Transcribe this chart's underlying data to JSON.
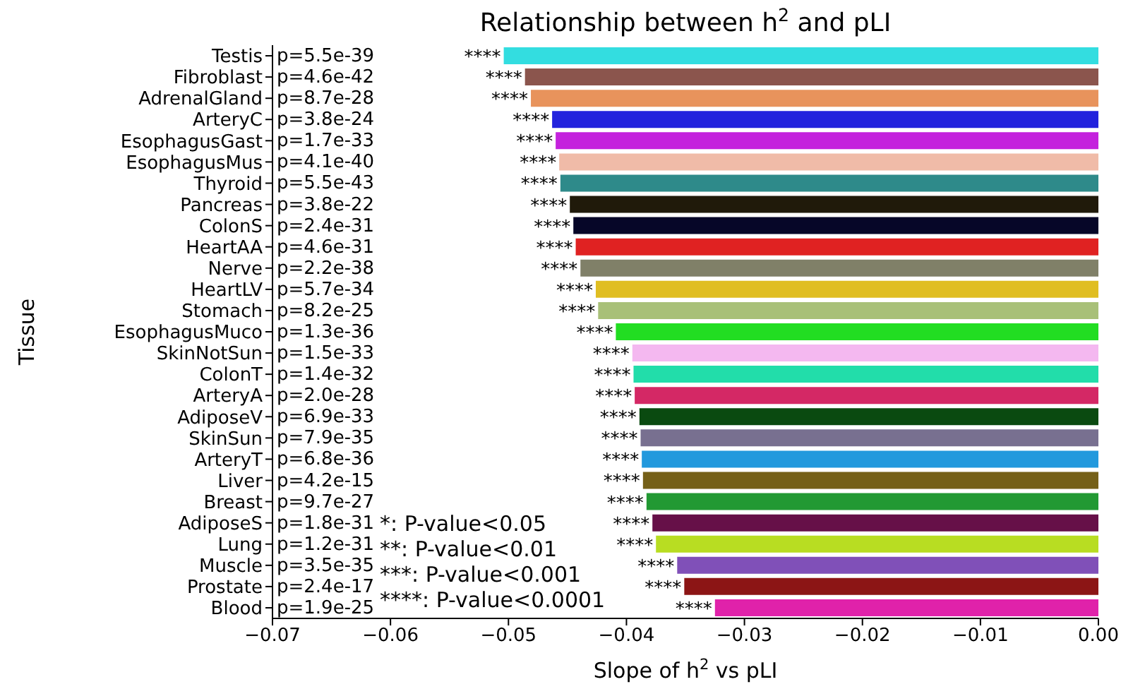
{
  "chart_data": {
    "type": "bar",
    "orientation": "horizontal",
    "title": "Relationship between h$^{2}$ and pLI",
    "xlabel": "Slope of h$^{2}$ vs pLI",
    "ylabel": "Tissue",
    "categories": [
      "Testis",
      "Fibroblast",
      "AdrenalGland",
      "ArteryC",
      "EsophagusGast",
      "EsophagusMus",
      "Thyroid",
      "Pancreas",
      "ColonS",
      "HeartAA",
      "Nerve",
      "HeartLV",
      "Stomach",
      "EsophagusMuco",
      "SkinNotSun",
      "ColonT",
      "ArteryA",
      "AdiposeV",
      "SkinSun",
      "ArteryT",
      "Liver",
      "Breast",
      "AdiposeS",
      "Lung",
      "Muscle",
      "Prostate",
      "Blood"
    ],
    "values": [
      -0.0504,
      -0.0486,
      -0.0481,
      -0.0463,
      -0.046,
      -0.0457,
      -0.0456,
      -0.0448,
      -0.0445,
      -0.0443,
      -0.0439,
      -0.0426,
      -0.0424,
      -0.0409,
      -0.0395,
      -0.0394,
      -0.0393,
      -0.0389,
      -0.0388,
      -0.0387,
      -0.0386,
      -0.0383,
      -0.0378,
      -0.0375,
      -0.0357,
      -0.0351,
      -0.0325
    ],
    "colors": [
      "#33dde0",
      "#8b554d",
      "#e8935c",
      "#2222dd",
      "#c422dd",
      "#f0bba8",
      "#2e8a8a",
      "#201a0a",
      "#060628",
      "#e02222",
      "#808068",
      "#e0be22",
      "#a8c078",
      "#22dd22",
      "#f4b8f0",
      "#22ddaa",
      "#d42865",
      "#0a4a10",
      "#787090",
      "#2299dd",
      "#756018",
      "#229933",
      "#661048",
      "#b8dd22",
      "#8050b8",
      "#8c1515",
      "#e022aa"
    ],
    "value_labels": [
      "****",
      "****",
      "****",
      "****",
      "****",
      "****",
      "****",
      "****",
      "****",
      "****",
      "****",
      "****",
      "****",
      "****",
      "****",
      "****",
      "****",
      "****",
      "****",
      "****",
      "****",
      "****",
      "****",
      "****",
      "****",
      "****",
      "****"
    ],
    "xlim": [
      -0.07,
      0
    ],
    "xticks": [
      {
        "value": -0.07,
        "label": "−0.07"
      },
      {
        "value": -0.06,
        "label": "−0.06"
      },
      {
        "value": -0.05,
        "label": "−0.05"
      },
      {
        "value": -0.04,
        "label": "−0.04"
      },
      {
        "value": -0.03,
        "label": "−0.03"
      },
      {
        "value": -0.02,
        "label": "−0.02"
      },
      {
        "value": -0.01,
        "label": "−0.01"
      },
      {
        "value": 0,
        "label": "0.00"
      }
    ],
    "grid": false,
    "legend": false,
    "annotations": [
      "p=5.5e-39",
      "p=4.6e-42",
      "p=8.7e-28",
      "p=3.8e-24",
      "p=1.7e-33",
      "p=4.1e-40",
      "p=5.5e-43",
      "p=3.8e-22",
      "p=2.4e-31",
      "p=4.6e-31",
      "p=2.2e-38",
      "p=5.7e-34",
      "p=8.2e-25",
      "p=1.3e-36",
      "p=1.5e-33",
      "p=1.4e-32",
      "p=2.0e-28",
      "p=6.9e-33",
      "p=7.9e-35",
      "p=6.8e-36",
      "p=4.2e-15",
      "p=9.7e-27",
      "p=1.8e-31",
      "p=1.2e-31",
      "p=3.5e-35",
      "p=2.4e-17",
      "p=1.9e-25",
      "*: P-value<0.05",
      "**: P-value<0.01",
      "***: P-value<0.001",
      "****: P-value<0.0001"
    ]
  }
}
